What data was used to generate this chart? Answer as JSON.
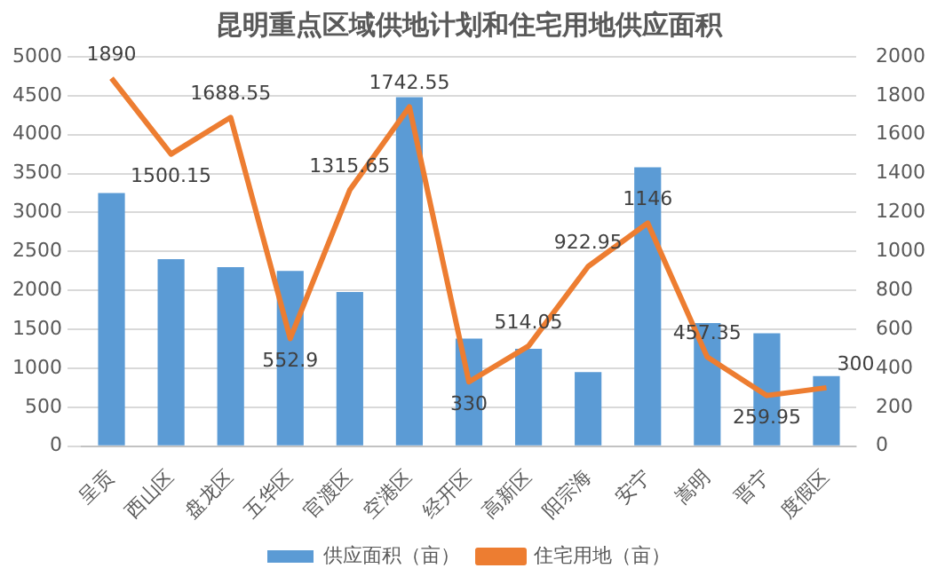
{
  "chart_data": {
    "type": "bar",
    "title": "昆明重点区域供地计划和住宅用地供应面积",
    "categories": [
      "呈贡",
      "西山区",
      "盘龙区",
      "五华区",
      "官渡区",
      "空港区",
      "经开区",
      "高新区",
      "阳宗海",
      "安宁",
      "嵩明",
      "晋宁",
      "度假区"
    ],
    "series": [
      {
        "name": "供应面积（亩）",
        "color": "#5b9bd5",
        "values": [
          3250,
          2400,
          2300,
          2250,
          1980,
          4480,
          1380,
          1250,
          950,
          3580,
          1580,
          1450,
          900
        ]
      },
      {
        "name": "住宅用地（亩）",
        "type": "line",
        "axis": "y2",
        "color": "#ed7d31",
        "values": [
          1890,
          1500.15,
          1688.55,
          552.9,
          1315.65,
          1742.55,
          330,
          514.05,
          922.95,
          1146,
          457.35,
          259.95,
          300
        ],
        "value_labels": [
          "1890",
          "1500.15",
          "1688.55",
          "552.9",
          "1315.65",
          "1742.55",
          "330",
          "514.05",
          "922.95",
          "1146",
          "457.35",
          "259.95",
          "300"
        ]
      }
    ],
    "ylim": [
      0,
      5000
    ],
    "yticks": [
      0,
      500,
      1000,
      1500,
      2000,
      2500,
      3000,
      3500,
      4000,
      4500,
      5000
    ],
    "y2lim": [
      0,
      2000
    ],
    "y2ticks": [
      0,
      200,
      400,
      600,
      800,
      1000,
      1200,
      1400,
      1600,
      1800,
      2000
    ],
    "grid": "y",
    "legend": "bottom",
    "marker": "none",
    "line_style": "solid"
  }
}
